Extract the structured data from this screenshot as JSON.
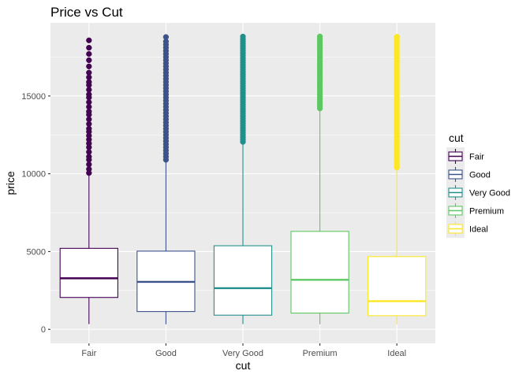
{
  "chart_data": {
    "type": "boxplot",
    "title": "Price vs Cut",
    "xlabel": "cut",
    "ylabel": "price",
    "categories": [
      "Fair",
      "Good",
      "Very Good",
      "Premium",
      "Ideal"
    ],
    "ylim": [
      -900,
      19700
    ],
    "yticks": [
      0,
      5000,
      10000,
      15000
    ],
    "ytick_labels": [
      "0",
      "5000",
      "10000",
      "15000"
    ],
    "grid": true,
    "legend_position": "right",
    "legend_title": "cut",
    "legend_labels": [
      "Fair",
      "Good",
      "Very Good",
      "Premium",
      "Ideal"
    ],
    "colors": [
      "#440154",
      "#3b528b",
      "#21908c",
      "#5dc863",
      "#fde725"
    ],
    "boxes": [
      {
        "category": "Fair",
        "min": 337,
        "q1": 2050,
        "median": 3282,
        "q3": 5206,
        "whisker_high": 9950,
        "max": 18574,
        "outliers": [
          10050,
          10300,
          10600,
          10900,
          11100,
          11400,
          11700,
          11950,
          12200,
          12450,
          12700,
          12900,
          13200,
          13500,
          13800,
          14000,
          14300,
          14600,
          14900,
          15100,
          15400,
          15700,
          15900,
          16200,
          16500,
          16900,
          17300,
          17700,
          18100,
          18574
        ]
      },
      {
        "category": "Good",
        "min": 327,
        "q1": 1145,
        "median": 3050,
        "q3": 5028,
        "whisker_high": 10850,
        "max": 18788,
        "outliers": [
          10900,
          11100,
          11300,
          11500,
          11700,
          11900,
          12100,
          12300,
          12500,
          12700,
          12900,
          13100,
          13300,
          13500,
          13700,
          13900,
          14100,
          14300,
          14500,
          14700,
          14900,
          15100,
          15300,
          15500,
          15700,
          15900,
          16100,
          16300,
          16500,
          16700,
          16900,
          17100,
          17300,
          17500,
          17700,
          17900,
          18100,
          18300,
          18500,
          18788
        ]
      },
      {
        "category": "Very Good",
        "min": 336,
        "q1": 912,
        "median": 2648,
        "q3": 5373,
        "whisker_high": 12020,
        "max": 18818,
        "outliers": [
          12050,
          12200,
          12350,
          12500,
          12650,
          12800,
          12950,
          13100,
          13250,
          13400,
          13550,
          13700,
          13850,
          14000,
          14150,
          14300,
          14450,
          14600,
          14750,
          14900,
          15050,
          15200,
          15350,
          15500,
          15650,
          15800,
          15950,
          16100,
          16250,
          16400,
          16550,
          16700,
          16850,
          17000,
          17150,
          17300,
          17450,
          17600,
          17750,
          17900,
          18050,
          18200,
          18350,
          18500,
          18650,
          18818
        ]
      },
      {
        "category": "Premium",
        "min": 326,
        "q1": 1046,
        "median": 3185,
        "q3": 6296,
        "whisker_high": 14150,
        "max": 18823,
        "outliers": [
          14200,
          14350,
          14500,
          14650,
          14800,
          14950,
          15100,
          15250,
          15400,
          15550,
          15700,
          15850,
          16000,
          16150,
          16300,
          16450,
          16600,
          16750,
          16900,
          17050,
          17200,
          17350,
          17500,
          17650,
          17800,
          17950,
          18100,
          18250,
          18400,
          18550,
          18700,
          18823
        ]
      },
      {
        "category": "Ideal",
        "min": 326,
        "q1": 878,
        "median": 1810,
        "q3": 4678,
        "whisker_high": 10350,
        "max": 18806,
        "outliers": [
          10400,
          10550,
          10700,
          10850,
          11000,
          11150,
          11300,
          11450,
          11600,
          11750,
          11900,
          12050,
          12200,
          12350,
          12500,
          12650,
          12800,
          12950,
          13100,
          13250,
          13400,
          13550,
          13700,
          13850,
          14000,
          14150,
          14300,
          14450,
          14600,
          14750,
          14900,
          15050,
          15200,
          15350,
          15500,
          15650,
          15800,
          15950,
          16100,
          16250,
          16400,
          16550,
          16700,
          16850,
          17000,
          17150,
          17300,
          17450,
          17600,
          17750,
          17900,
          18050,
          18200,
          18350,
          18500,
          18650,
          18806
        ]
      }
    ]
  }
}
